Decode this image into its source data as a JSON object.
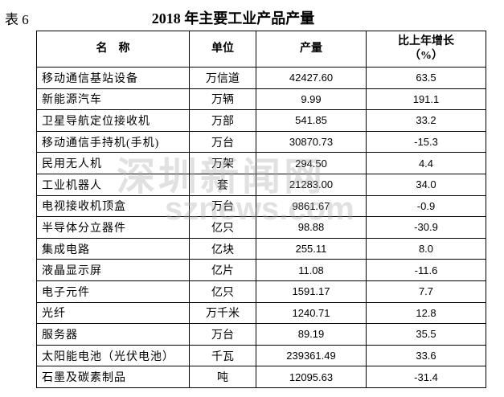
{
  "header": {
    "label": "表 6",
    "title": "2018 年主要工业产品产量"
  },
  "table": {
    "columns": [
      "名    称",
      "单位",
      "产量",
      [
        "比上年增长",
        "（%）"
      ]
    ],
    "rows": [
      [
        "移动通信基站设备",
        "万信道",
        "42427.60",
        "63.5"
      ],
      [
        "新能源汽车",
        "万辆",
        "9.99",
        "191.1"
      ],
      [
        "卫星导航定位接收机",
        "万部",
        "541.85",
        "33.2"
      ],
      [
        "移动通信手持机(手机)",
        "万台",
        "30870.73",
        "-15.3"
      ],
      [
        "民用无人机",
        "万架",
        "294.50",
        "4.4"
      ],
      [
        "工业机器人",
        "套",
        "21283.00",
        "34.0"
      ],
      [
        "电视接收机顶盒",
        "万台",
        "9861.67",
        "-0.9"
      ],
      [
        "半导体分立器件",
        "亿只",
        "98.88",
        "-30.9"
      ],
      [
        "集成电路",
        "亿块",
        "255.11",
        "8.0"
      ],
      [
        "液晶显示屏",
        "亿片",
        "11.08",
        "-11.6"
      ],
      [
        "电子元件",
        "亿只",
        "1591.17",
        "7.7"
      ],
      [
        "光纤",
        "万千米",
        "1240.71",
        "12.8"
      ],
      [
        "服务器",
        "万台",
        "89.19",
        "35.5"
      ],
      [
        "太阳能电池（光伏电池）",
        "千瓦",
        "239361.49",
        "33.6"
      ],
      [
        "石墨及碳素制品",
        "吨",
        "12095.63",
        "-31.4"
      ]
    ]
  },
  "watermark": [
    "深圳新闻网",
    "sznews.com"
  ]
}
